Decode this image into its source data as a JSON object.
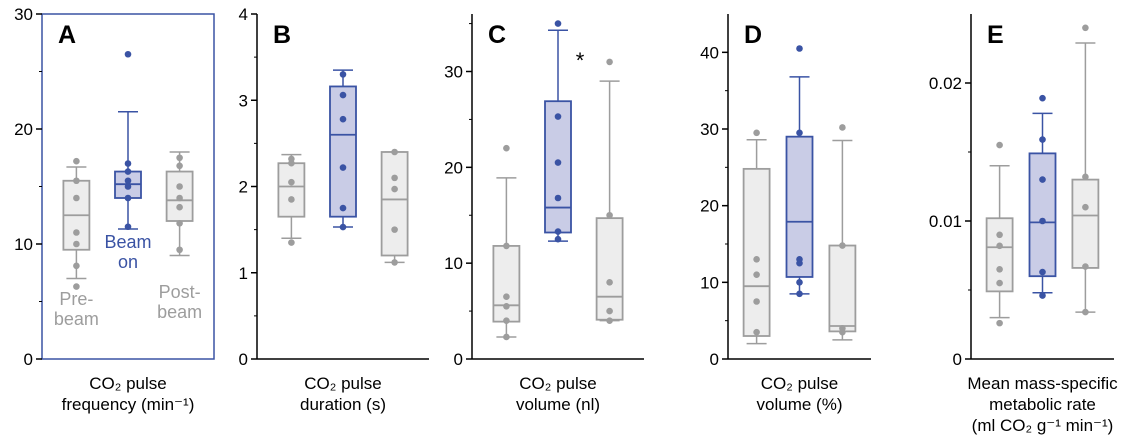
{
  "colors": {
    "gray": "#9d9d9d",
    "blue": "#3a53a4",
    "gray_fill": "#ededed",
    "blue_fill": "#c9cce6",
    "axis": "#000000"
  },
  "chart_data": [
    {
      "type": "box",
      "panel_label": "A",
      "xlabel": [
        "CO₂ pulse",
        "frequency (min⁻¹)"
      ],
      "ylim": [
        0,
        30
      ],
      "yticks": [
        0,
        10,
        20,
        30
      ],
      "yticklabels": [
        "0",
        "10",
        "20",
        "30"
      ],
      "frame": "box",
      "group_labels": [
        {
          "lines": [
            "Pre-",
            "beam"
          ],
          "color": "gray"
        },
        {
          "lines": [
            "Beam",
            "on"
          ],
          "color": "blue"
        },
        {
          "lines": [
            "Post-",
            "beam"
          ],
          "color": "gray"
        }
      ],
      "boxes": [
        {
          "group": "Pre-beam",
          "color": "gray",
          "min": 7,
          "q1": 9.5,
          "median": 12.5,
          "q3": 15.5,
          "max": 16.7,
          "points": [
            6.3,
            8.1,
            10,
            11,
            14,
            15.5,
            17.2
          ]
        },
        {
          "group": "Beam on",
          "color": "blue",
          "min": 11.3,
          "q1": 14,
          "median": 15.2,
          "q3": 16.3,
          "max": 21.5,
          "points": [
            11.5,
            14,
            15,
            15.5,
            16.3,
            17,
            26.5
          ]
        },
        {
          "group": "Post-beam",
          "color": "gray",
          "min": 9,
          "q1": 12,
          "median": 13.8,
          "q3": 16.3,
          "max": 18,
          "points": [
            9.5,
            11.8,
            13.2,
            14,
            15,
            16.8,
            17.5
          ]
        }
      ]
    },
    {
      "type": "box",
      "panel_label": "B",
      "xlabel": [
        "CO₂ pulse",
        "duration (s)"
      ],
      "ylim": [
        0,
        4
      ],
      "yticks": [
        0,
        1,
        2,
        3,
        4
      ],
      "yticklabels": [
        "0",
        "1",
        "2",
        "3",
        "4"
      ],
      "frame": "L",
      "boxes": [
        {
          "color": "gray",
          "min": 1.4,
          "q1": 1.65,
          "median": 2,
          "q3": 2.27,
          "max": 2.37,
          "points": [
            1.35,
            1.85,
            2.05,
            2.27,
            2.32
          ]
        },
        {
          "color": "blue",
          "min": 1.53,
          "q1": 1.65,
          "median": 2.6,
          "q3": 3.16,
          "max": 3.35,
          "points": [
            1.53,
            1.75,
            2.22,
            2.78,
            3.06,
            3.3
          ]
        },
        {
          "color": "gray",
          "min": 1.12,
          "q1": 1.2,
          "median": 1.85,
          "q3": 2.4,
          "max": 2.4,
          "points": [
            1.12,
            1.5,
            1.97,
            2.1,
            2.4
          ]
        }
      ]
    },
    {
      "type": "box",
      "panel_label": "C",
      "xlabel": [
        "CO₂ pulse",
        "volume (nl)"
      ],
      "ylim": [
        0,
        36
      ],
      "yticks": [
        0,
        10,
        20,
        30
      ],
      "yticklabels": [
        "0",
        "10",
        "20",
        "30"
      ],
      "frame": "L",
      "annotations": [
        {
          "text": "*",
          "box_index": 1
        }
      ],
      "boxes": [
        {
          "color": "gray",
          "min": 2.3,
          "q1": 3.9,
          "median": 5.6,
          "q3": 11.8,
          "max": 18.9,
          "points": [
            2.3,
            4,
            5.5,
            6.5,
            11.8,
            22
          ]
        },
        {
          "color": "blue",
          "min": 12.3,
          "q1": 13.2,
          "median": 15.8,
          "q3": 26.9,
          "max": 34.3,
          "points": [
            12.5,
            13.3,
            16.8,
            20.5,
            25.3,
            35
          ]
        },
        {
          "color": "gray",
          "min": 4,
          "q1": 4.1,
          "median": 6.5,
          "q3": 14.7,
          "max": 29,
          "points": [
            4,
            5,
            8,
            15,
            31
          ]
        }
      ]
    },
    {
      "type": "box",
      "panel_label": "D",
      "xlabel": [
        "CO₂ pulse",
        "volume (%)"
      ],
      "ylim": [
        0,
        45
      ],
      "yticks": [
        0,
        10,
        20,
        30,
        40
      ],
      "yticklabels": [
        "0",
        "10",
        "20",
        "30",
        "40"
      ],
      "frame": "L",
      "boxes": [
        {
          "color": "gray",
          "min": 2,
          "q1": 3,
          "median": 9.5,
          "q3": 24.8,
          "max": 28.6,
          "points": [
            3.5,
            7.5,
            11,
            13,
            29.5
          ]
        },
        {
          "color": "blue",
          "min": 8.5,
          "q1": 10.7,
          "median": 17.9,
          "q3": 29,
          "max": 36.8,
          "points": [
            8.5,
            10,
            12.5,
            13,
            29.5,
            40.5
          ]
        },
        {
          "color": "gray",
          "min": 2.5,
          "q1": 3.6,
          "median": 4.3,
          "q3": 14.8,
          "max": 28.5,
          "points": [
            3.5,
            4,
            14.8,
            30.2
          ]
        }
      ]
    },
    {
      "type": "box",
      "panel_label": "E",
      "xlabel": [
        "Mean mass-specific",
        "metabolic rate",
        "(ml CO₂ g⁻¹ min⁻¹)"
      ],
      "ylim": [
        0,
        0.025
      ],
      "yticks": [
        0,
        0.01,
        0.02
      ],
      "yticklabels": [
        "0",
        "0.01",
        "0.02"
      ],
      "frame": "L",
      "boxes": [
        {
          "color": "gray",
          "min": 0.003,
          "q1": 0.0049,
          "median": 0.0081,
          "q3": 0.0102,
          "max": 0.014,
          "points": [
            0.0026,
            0.0055,
            0.0065,
            0.0082,
            0.009,
            0.0155
          ]
        },
        {
          "color": "blue",
          "min": 0.0048,
          "q1": 0.006,
          "median": 0.0099,
          "q3": 0.0149,
          "max": 0.0178,
          "points": [
            0.0046,
            0.0063,
            0.01,
            0.013,
            0.0159,
            0.0189
          ]
        },
        {
          "color": "gray",
          "min": 0.0034,
          "q1": 0.0066,
          "median": 0.0104,
          "q3": 0.013,
          "max": 0.0229,
          "points": [
            0.0034,
            0.0067,
            0.011,
            0.0132,
            0.024
          ]
        }
      ]
    }
  ]
}
